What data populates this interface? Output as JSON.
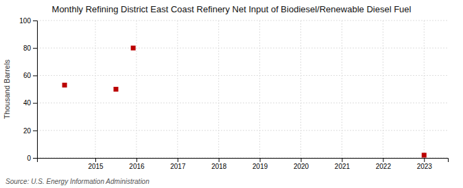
{
  "chart_data": {
    "type": "scatter",
    "title": "Monthly Refining District East Coast Refinery Net Input of Biodiesel/Renewable Diesel Fuel",
    "ylabel": "Thousand Barrels",
    "source": "Source: U.S. Energy Information Administration",
    "x": [
      2014.25,
      2015.5,
      2015.92,
      2023.0
    ],
    "values": [
      53,
      50,
      80,
      2
    ],
    "color": "#bb0000",
    "marker": "square",
    "xlim": [
      2013.58,
      2023.58
    ],
    "ylim": [
      0,
      100
    ],
    "xticks": [
      2015,
      2016,
      2017,
      2018,
      2019,
      2020,
      2021,
      2022,
      2023
    ],
    "yticks": [
      0,
      20,
      40,
      60,
      80,
      100
    ],
    "grid": true
  }
}
